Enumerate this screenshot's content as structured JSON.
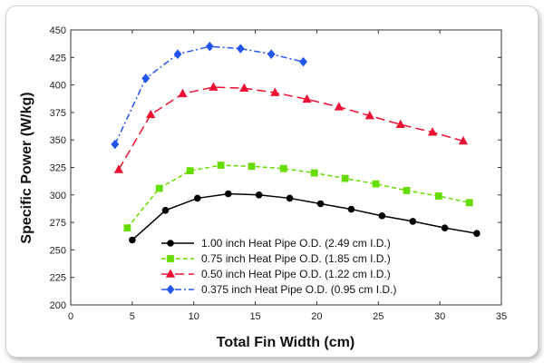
{
  "chart_data": {
    "type": "line",
    "title": "",
    "xlabel": "Total Fin Width (cm)",
    "ylabel": "Specific Power (W/kg)",
    "xlim": [
      0,
      35
    ],
    "ylim": [
      200,
      450
    ],
    "xticks": [
      0,
      5,
      10,
      15,
      20,
      25,
      30,
      35
    ],
    "yticks": [
      200,
      225,
      250,
      275,
      300,
      325,
      350,
      375,
      400,
      425,
      450
    ],
    "grid": false,
    "legend_position": "bottom-center",
    "series": [
      {
        "name": "1.00 inch Heat Pipe O.D. (2.49 cm I.D.)",
        "color": "#000000",
        "marker": "circle",
        "line_style": "solid",
        "x": [
          5.0,
          7.7,
          10.3,
          12.8,
          15.3,
          17.8,
          20.3,
          22.8,
          25.3,
          27.8,
          30.4,
          33.0
        ],
        "y": [
          259,
          286,
          297,
          301,
          300,
          297,
          292,
          287,
          281,
          276,
          270,
          265
        ]
      },
      {
        "name": "0.75 inch Heat Pipe O.D. (1.85 cm I.D.)",
        "color": "#66dd00",
        "marker": "square",
        "line_style": "dashed",
        "x": [
          4.6,
          7.2,
          9.7,
          12.2,
          14.7,
          17.3,
          19.8,
          22.3,
          24.8,
          27.3,
          29.9,
          32.4
        ],
        "y": [
          270,
          306,
          322,
          327,
          326,
          324,
          320,
          315,
          310,
          304,
          299,
          293
        ]
      },
      {
        "name": "0.50 inch Heat Pipe O.D. (1.22 cm I.D.)",
        "color": "#ee1133",
        "marker": "triangle",
        "line_style": "longdash",
        "x": [
          3.9,
          6.5,
          9.1,
          11.6,
          14.1,
          16.6,
          19.2,
          21.8,
          24.3,
          26.8,
          29.4,
          31.9
        ],
        "y": [
          323,
          373,
          392,
          398,
          397,
          393,
          387,
          380,
          372,
          364,
          357,
          349
        ]
      },
      {
        "name": "0.375 inch Heat Pipe O.D. (0.95 cm I.D.)",
        "color": "#2255ee",
        "marker": "diamond",
        "line_style": "dashdot",
        "x": [
          3.6,
          6.1,
          8.7,
          11.3,
          13.8,
          16.3,
          18.9
        ],
        "y": [
          346,
          406,
          428,
          435,
          433,
          428,
          421
        ]
      }
    ]
  }
}
